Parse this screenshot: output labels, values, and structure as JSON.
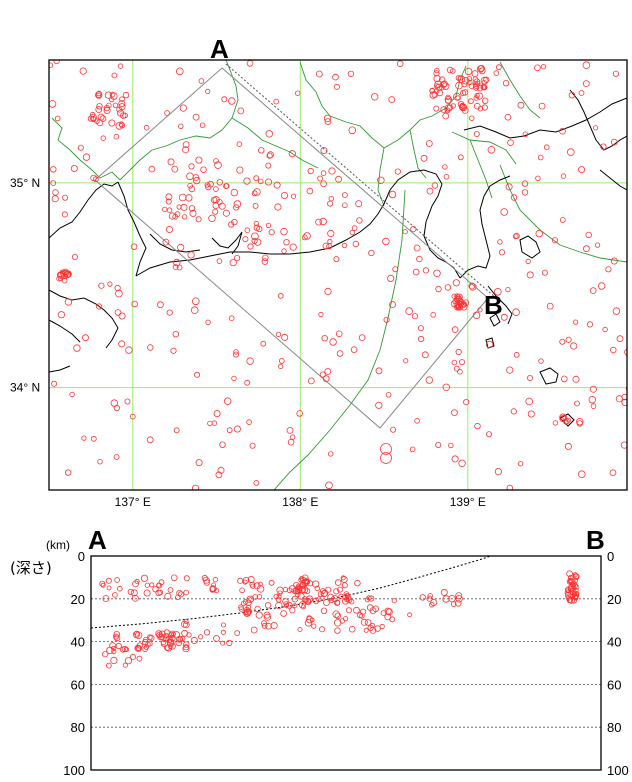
{
  "map": {
    "point_a_label": "A",
    "point_b_label": "B",
    "lat_labels": [
      {
        "text": "35° N",
        "lat": 35.0
      },
      {
        "text": "34° N",
        "lat": 34.0
      }
    ],
    "lon_labels": [
      {
        "text": "137° E",
        "lon": 137.0
      },
      {
        "text": "138° E",
        "lon": 138.0
      },
      {
        "text": "139° E",
        "lon": 139.0
      }
    ],
    "lon_range": [
      136.5,
      139.95
    ],
    "lat_range": [
      33.5,
      35.6
    ],
    "grid_color": "#99ee66",
    "event_color": "#ff0000",
    "coast_color": "#000000",
    "boundary_color": "#339933"
  },
  "section": {
    "a_label": "A",
    "b_label": "B",
    "unit_label": "(km)",
    "depth_caption": "(深さ)",
    "left_ticks": [
      "0",
      "20",
      "40",
      "60",
      "80",
      "100"
    ],
    "right_ticks": [
      "0",
      "20",
      "40",
      "60",
      "80",
      "100"
    ],
    "depth_range": [
      0,
      100
    ],
    "gridline_depths": [
      20,
      40,
      60,
      80
    ]
  }
}
